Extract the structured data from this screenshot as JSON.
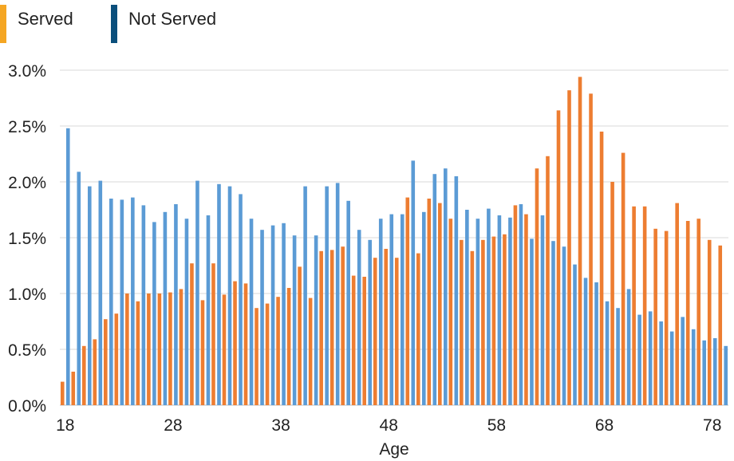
{
  "chart_data": {
    "type": "bar",
    "xlabel": "Age",
    "ylabel": "",
    "ylim": [
      0,
      3.0
    ],
    "y_ticks": [
      "0.0%",
      "0.5%",
      "1.0%",
      "1.5%",
      "2.0%",
      "2.5%",
      "3.0%"
    ],
    "x_ticks": [
      "18",
      "28",
      "38",
      "48",
      "58",
      "68",
      "78"
    ],
    "grid": true,
    "legend_position": "top-left",
    "categories": [
      18,
      19,
      20,
      21,
      22,
      23,
      24,
      25,
      26,
      27,
      28,
      29,
      30,
      31,
      32,
      33,
      34,
      35,
      36,
      37,
      38,
      39,
      40,
      41,
      42,
      43,
      44,
      45,
      46,
      47,
      48,
      49,
      50,
      51,
      52,
      53,
      54,
      55,
      56,
      57,
      58,
      59,
      60,
      61,
      62,
      63,
      64,
      65,
      66,
      67,
      68,
      69,
      70,
      71,
      72,
      73,
      74,
      75,
      76,
      77,
      78,
      79
    ],
    "series": [
      {
        "name": "Served",
        "color": "#ed7d31",
        "values": [
          0.21,
          0.3,
          0.53,
          0.59,
          0.77,
          0.82,
          1.0,
          0.93,
          1.0,
          1.0,
          1.01,
          1.04,
          1.27,
          0.94,
          1.27,
          0.99,
          1.11,
          1.09,
          0.87,
          0.91,
          0.97,
          1.05,
          1.24,
          0.96,
          1.38,
          1.39,
          1.42,
          1.16,
          1.15,
          1.32,
          1.4,
          1.32,
          1.86,
          1.36,
          1.85,
          1.81,
          1.67,
          1.48,
          1.38,
          1.48,
          1.51,
          1.53,
          1.79,
          1.71,
          2.12,
          2.23,
          2.64,
          2.82,
          2.94,
          2.79,
          2.45,
          2.0,
          2.26,
          1.78,
          1.78,
          1.58,
          1.56,
          1.81,
          1.65,
          1.67,
          1.48,
          1.43
        ]
      },
      {
        "name": "Not Served",
        "color": "#5b9bd5",
        "values": [
          2.48,
          2.09,
          1.96,
          2.01,
          1.85,
          1.84,
          1.86,
          1.79,
          1.64,
          1.73,
          1.8,
          1.67,
          2.01,
          1.7,
          1.98,
          1.96,
          1.89,
          1.67,
          1.57,
          1.61,
          1.63,
          1.52,
          1.96,
          1.52,
          1.96,
          1.99,
          1.83,
          1.57,
          1.48,
          1.67,
          1.71,
          1.71,
          2.19,
          1.73,
          2.07,
          2.12,
          2.05,
          1.75,
          1.67,
          1.76,
          1.7,
          1.68,
          1.8,
          1.49,
          1.7,
          1.47,
          1.42,
          1.26,
          1.14,
          1.1,
          0.93,
          0.87,
          1.04,
          0.81,
          0.84,
          0.75,
          0.66,
          0.79,
          0.68,
          0.58,
          0.6,
          0.53
        ]
      }
    ]
  },
  "legend": {
    "items": [
      {
        "label": "Served",
        "color": "#f5a623"
      },
      {
        "label": "Not Served",
        "color": "#0b4f7c"
      }
    ]
  }
}
